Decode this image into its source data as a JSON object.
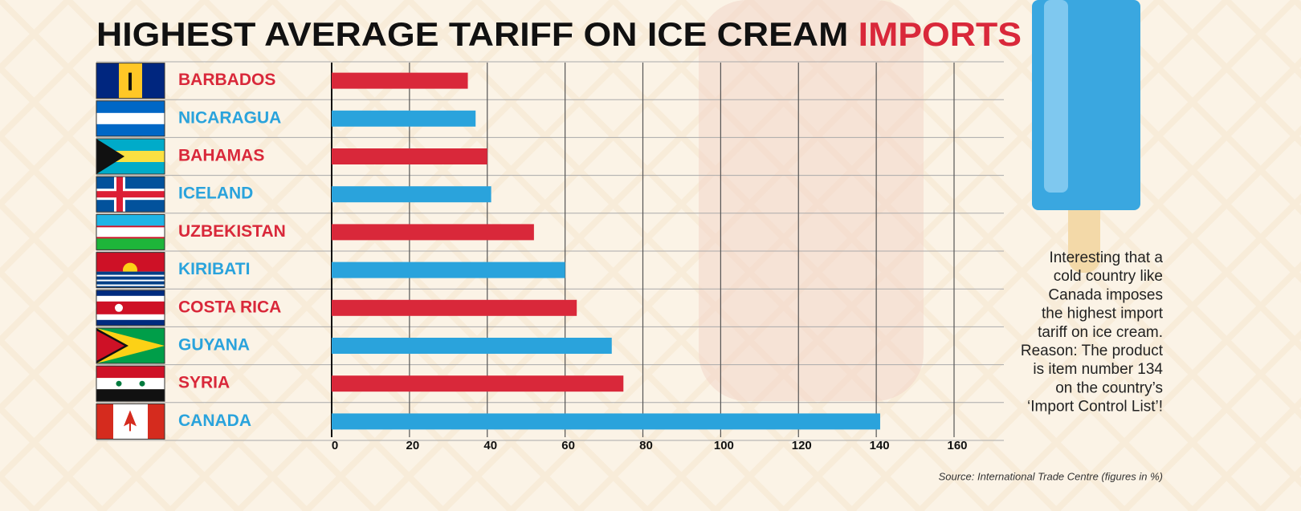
{
  "chart_data": {
    "type": "bar",
    "orientation": "horizontal",
    "title": [
      "HIGHEST AVERAGE TARIFF ON ICE CREAM",
      "IMPORTS"
    ],
    "title_colors": [
      "#111111",
      "#d9283a"
    ],
    "categories": [
      "BARBADOS",
      "NICARAGUA",
      "BAHAMAS",
      "ICELAND",
      "UZBEKISTAN",
      "KIRIBATI",
      "COSTA RICA",
      "GUYANA",
      "SYRIA",
      "CANADA"
    ],
    "values": [
      35,
      37,
      40,
      41,
      52,
      60,
      63,
      72,
      75,
      141
    ],
    "colors": [
      "#d9283a",
      "#2aa3dc",
      "#d9283a",
      "#2aa3dc",
      "#d9283a",
      "#2aa3dc",
      "#d9283a",
      "#2aa3dc",
      "#d9283a",
      "#2aa3dc"
    ],
    "xlim": [
      0,
      160
    ],
    "xticks": [
      0,
      20,
      40,
      60,
      80,
      100,
      120,
      140,
      160
    ],
    "grid": true,
    "annotation": [
      "Interesting that a",
      "cold country like",
      "Canada imposes",
      "the highest import",
      "tariff on ice cream.",
      "Reason: The product",
      "is item number 134",
      "on the country’s",
      "‘Import Control List’!"
    ],
    "source": "Source: International Trade Centre (figures in %)"
  }
}
